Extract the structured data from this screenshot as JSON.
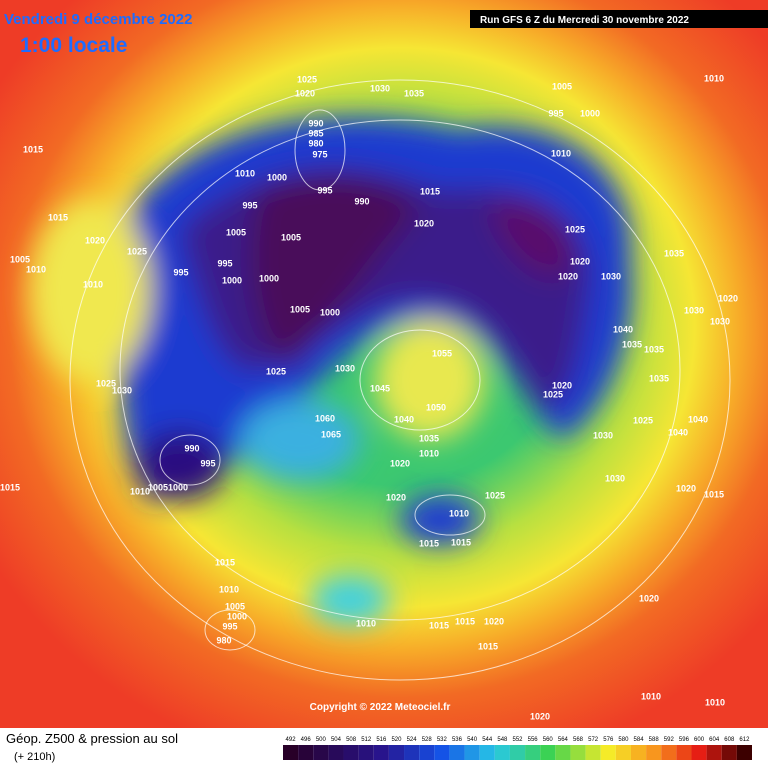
{
  "header": {
    "date": "Vendredi 9 décembre 2022",
    "time": "1:00 locale",
    "run": "Run GFS 6 Z du Mercredi 30 novembre 2022"
  },
  "copyright": "Copyright © 2022 Meteociel.fr",
  "legend": {
    "title": "Géop. Z500 & pression au sol",
    "lead": "(+ 210h)",
    "scale": [
      492,
      496,
      500,
      504,
      508,
      512,
      516,
      520,
      524,
      528,
      532,
      536,
      540,
      544,
      548,
      552,
      556,
      560,
      564,
      568,
      572,
      576,
      580,
      584,
      588,
      592,
      596,
      600,
      604,
      608,
      612
    ]
  },
  "isobars": [
    "1025",
    "1020",
    "1030",
    "1035",
    "1010",
    "1005",
    "995",
    "1000",
    "990",
    "985",
    "980",
    "975",
    "1015",
    "1010",
    "1010",
    "1000",
    "995",
    "1015",
    "990",
    "995",
    "1015",
    "1020",
    "1005",
    "1005",
    "1025",
    "1020",
    "1025",
    "1035",
    "995",
    "1005",
    "1010",
    "995",
    "1000",
    "1000",
    "1020",
    "1030",
    "1010",
    "1020",
    "1020",
    "1030",
    "1030",
    "1005",
    "1000",
    "1040",
    "1035",
    "1035",
    "1055",
    "1025",
    "1030",
    "1035",
    "1025",
    "1030",
    "1045",
    "1020",
    "1025",
    "1050",
    "1060",
    "1040",
    "1025",
    "1040",
    "1040",
    "1065",
    "1035",
    "1030",
    "990",
    "1010",
    "995",
    "1020",
    "1030",
    "1015",
    "1010",
    "1005",
    "1000",
    "1020",
    "1015",
    "1025",
    "1020",
    "1010",
    "1015",
    "1015",
    "1015",
    "1010",
    "1020",
    "1005",
    "1000",
    "1010",
    "1015",
    "1015",
    "1020",
    "995",
    "980",
    "1015",
    "1010",
    "1010",
    "1020"
  ]
}
